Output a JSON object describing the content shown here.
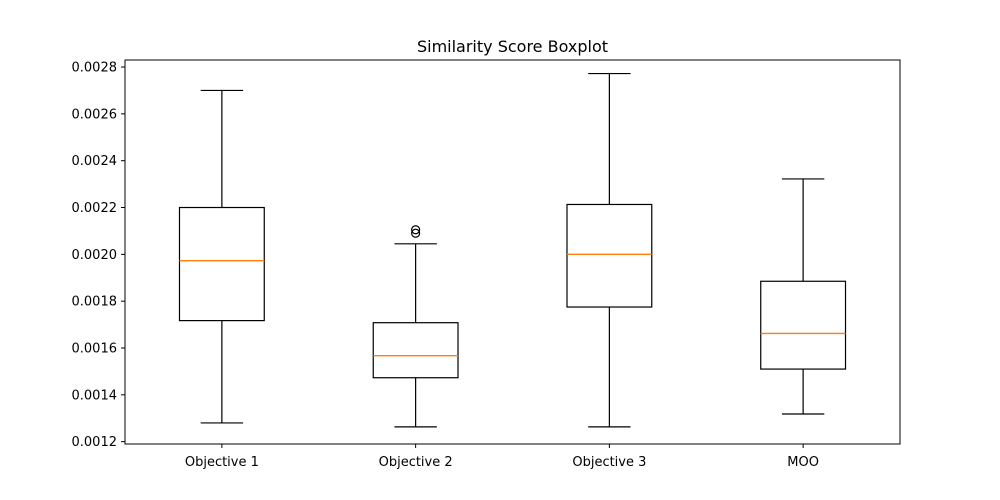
{
  "chart_data": {
    "type": "boxplot",
    "title": "Similarity Score Boxplot",
    "xlabel": "",
    "ylabel": "",
    "ylim": [
      0.00119,
      0.00283
    ],
    "y_ticks": [
      0.0012,
      0.0014,
      0.0016,
      0.0018,
      0.002,
      0.0022,
      0.0024,
      0.0026,
      0.0028
    ],
    "y_tick_labels": [
      "0.0012",
      "0.0014",
      "0.0016",
      "0.0018",
      "0.0020",
      "0.0022",
      "0.0024",
      "0.0026",
      "0.0028"
    ],
    "grid": false,
    "categories": [
      "Objective 1",
      "Objective 2",
      "Objective 3",
      "MOO"
    ],
    "boxes": [
      {
        "whisker_low": 0.00128,
        "q1": 0.001717,
        "median": 0.001973,
        "q3": 0.0022,
        "whisker_high": 0.0027,
        "outliers": []
      },
      {
        "whisker_low": 0.001263,
        "q1": 0.001473,
        "median": 0.001567,
        "q3": 0.001708,
        "whisker_high": 0.002045,
        "outliers": [
          0.00209,
          0.002105
        ]
      },
      {
        "whisker_low": 0.001263,
        "q1": 0.001775,
        "median": 0.002,
        "q3": 0.002213,
        "whisker_high": 0.002772,
        "outliers": []
      },
      {
        "whisker_low": 0.001318,
        "q1": 0.00151,
        "median": 0.001662,
        "q3": 0.001885,
        "whisker_high": 0.002322,
        "outliers": []
      }
    ],
    "colors": {
      "box": "#000000",
      "median": "#ff7f0e",
      "axis": "#000000"
    }
  }
}
